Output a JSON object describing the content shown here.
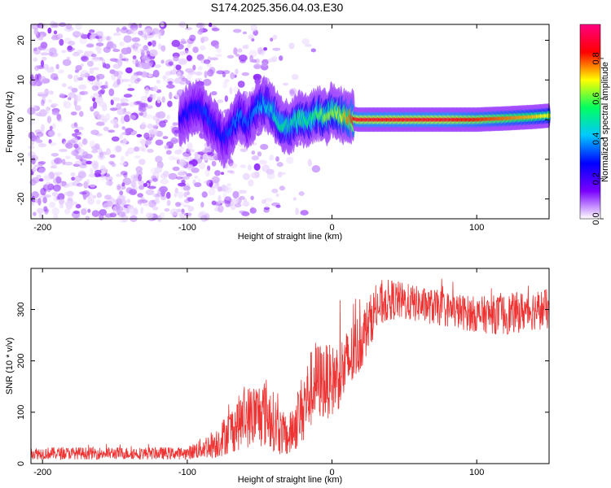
{
  "title": "S174.2025.356.04.03.E30",
  "chart_data": [
    {
      "type": "heatmap",
      "xlabel": "Height of straight line (km)",
      "ylabel": "Frequency (Hz)",
      "xlim": [
        -208,
        150
      ],
      "ylim": [
        -25,
        24
      ],
      "xticks": [
        -200,
        -100,
        0,
        100
      ],
      "yticks": [
        -20,
        -10,
        0,
        10,
        20
      ],
      "colorbar": {
        "label": "Normalized spectral amplitude",
        "range": [
          0,
          0.97
        ],
        "ticks": [
          "0.0",
          "0.2",
          "0.4",
          "0.6",
          "0.8"
        ],
        "tick_values": [
          0,
          0.2,
          0.4,
          0.6,
          0.8
        ],
        "colors": [
          "#ffffff",
          "#7a00ff",
          "#0000ff",
          "#00c8ff",
          "#00ff60",
          "#ffff00",
          "#ff0000",
          "#ff0080"
        ]
      },
      "ridge": {
        "x": [
          -105,
          -100,
          -92,
          -86,
          -80,
          -75,
          -70,
          -64,
          -58,
          -52,
          -46,
          -40,
          -34,
          -28,
          -22,
          -16,
          -10,
          -4,
          0,
          6,
          12,
          18,
          40,
          80,
          100,
          120,
          140,
          150
        ],
        "freq": [
          0,
          1.5,
          3.5,
          0.5,
          -2,
          -5,
          -3,
          1,
          -1,
          3,
          4,
          1.5,
          -2,
          -1.5,
          0.5,
          -0.5,
          1.5,
          0.5,
          2.5,
          1,
          0.5,
          0,
          0,
          0,
          0,
          0.3,
          0.7,
          1
        ],
        "amp": [
          0.25,
          0.3,
          0.3,
          0.35,
          0.3,
          0.3,
          0.35,
          0.4,
          0.35,
          0.4,
          0.45,
          0.5,
          0.55,
          0.5,
          0.6,
          0.55,
          0.6,
          0.65,
          0.65,
          0.7,
          0.8,
          0.9,
          0.9,
          0.9,
          0.85,
          0.8,
          0.75,
          0.7
        ]
      }
    },
    {
      "type": "line",
      "xlabel": "Height of straight line (km)",
      "ylabel": "SNR (10 * v/v)",
      "xlim": [
        -208,
        150
      ],
      "ylim": [
        0,
        380
      ],
      "xticks": [
        -200,
        -100,
        0,
        100
      ],
      "yticks": [
        0,
        100,
        200,
        300
      ],
      "color": "#f03030",
      "envelope": {
        "x": [
          -208,
          -100,
          -80,
          -60,
          -45,
          -35,
          -30,
          -20,
          -12,
          0,
          10,
          20,
          30,
          40,
          60,
          80,
          100,
          120,
          140,
          150
        ],
        "mean": [
          20,
          20,
          40,
          90,
          100,
          60,
          50,
          110,
          160,
          160,
          190,
          240,
          300,
          320,
          310,
          300,
          290,
          290,
          300,
          300
        ],
        "spread": [
          12,
          12,
          30,
          60,
          70,
          45,
          40,
          70,
          80,
          70,
          70,
          60,
          45,
          40,
          35,
          35,
          35,
          40,
          40,
          40
        ]
      }
    }
  ]
}
